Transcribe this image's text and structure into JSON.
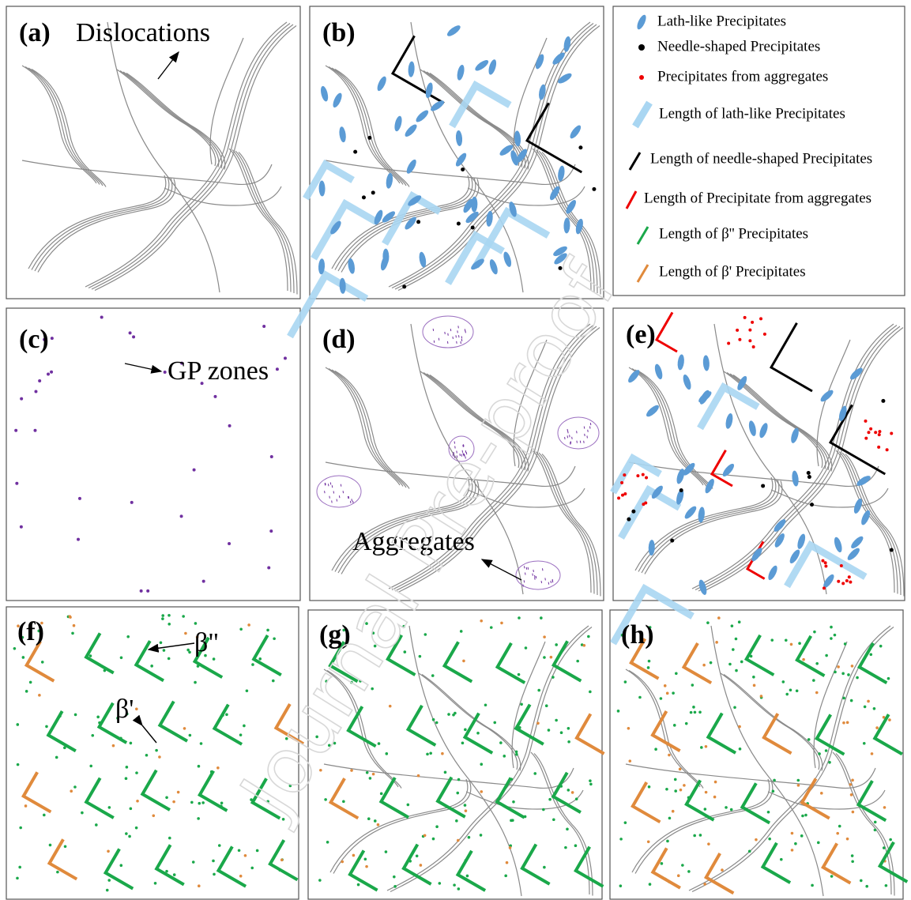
{
  "panels": [
    {
      "label": "(a)",
      "annotations": [
        "Dislocations"
      ]
    },
    {
      "label": "(b)"
    },
    {
      "label": "(c)",
      "annotations": [
        "GP zones"
      ]
    },
    {
      "label": "(d)",
      "annotations": [
        "Aggregates"
      ]
    },
    {
      "label": "(e)"
    },
    {
      "label": "(f)",
      "annotations": [
        "β\"",
        "β'"
      ]
    },
    {
      "label": "(g)"
    },
    {
      "label": "(h)"
    }
  ],
  "legend": [
    "Lath-like Precipitates",
    "Needle-shaped Precipitates",
    "Precipitates from aggregates",
    "Length of lath-like Precipitates",
    "Length of needle-shaped Precipitates",
    "Length of Precipitate from aggregates",
    "Length of β'' Precipitates",
    "Length of β' Precipitates"
  ],
  "watermark": "Journal Pre-proof"
}
